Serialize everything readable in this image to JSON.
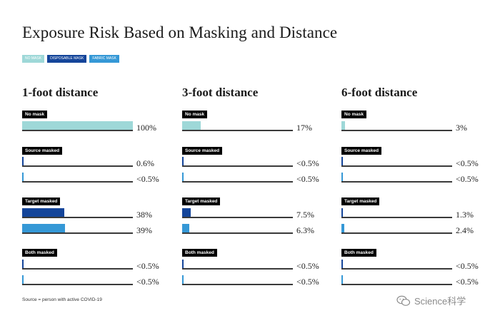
{
  "colors": {
    "no_mask": "#9ed8d8",
    "disposable_mask": "#14459a",
    "fabric_mask": "#3598d6",
    "label_bg": "#000000",
    "baseline": "#3a3a3a"
  },
  "chart_data": {
    "type": "bar",
    "title": "Exposure Risk Based on Masking and Distance",
    "legend": [
      "NO MASK",
      "DISPOSABLE MASK",
      "FABRIC MASK"
    ],
    "unit": "%",
    "panels": [
      {
        "title": "1-foot distance",
        "groups": [
          {
            "label": "No mask",
            "bars": [
              {
                "series": "NO MASK",
                "value": 100,
                "label": "100%"
              }
            ]
          },
          {
            "label": "Source masked",
            "bars": [
              {
                "series": "DISPOSABLE MASK",
                "value": 0.6,
                "label": "0.6%"
              },
              {
                "series": "FABRIC MASK",
                "value": 0.5,
                "label": "<0.5%"
              }
            ]
          },
          {
            "label": "Target masked",
            "bars": [
              {
                "series": "DISPOSABLE MASK",
                "value": 38,
                "label": "38%"
              },
              {
                "series": "FABRIC MASK",
                "value": 39,
                "label": "39%"
              }
            ]
          },
          {
            "label": "Both masked",
            "bars": [
              {
                "series": "DISPOSABLE MASK",
                "value": 0.5,
                "label": "<0.5%"
              },
              {
                "series": "FABRIC MASK",
                "value": 0.5,
                "label": "<0.5%"
              }
            ]
          }
        ]
      },
      {
        "title": "3-foot distance",
        "groups": [
          {
            "label": "No mask",
            "bars": [
              {
                "series": "NO MASK",
                "value": 17,
                "label": "17%"
              }
            ]
          },
          {
            "label": "Source masked",
            "bars": [
              {
                "series": "DISPOSABLE MASK",
                "value": 0.5,
                "label": "<0.5%"
              },
              {
                "series": "FABRIC MASK",
                "value": 0.5,
                "label": "<0.5%"
              }
            ]
          },
          {
            "label": "Target masked",
            "bars": [
              {
                "series": "DISPOSABLE MASK",
                "value": 7.5,
                "label": "7.5%"
              },
              {
                "series": "FABRIC MASK",
                "value": 6.3,
                "label": "6.3%"
              }
            ]
          },
          {
            "label": "Both masked",
            "bars": [
              {
                "series": "DISPOSABLE MASK",
                "value": 0.5,
                "label": "<0.5%"
              },
              {
                "series": "FABRIC MASK",
                "value": 0.5,
                "label": "<0.5%"
              }
            ]
          }
        ]
      },
      {
        "title": "6-foot distance",
        "groups": [
          {
            "label": "No mask",
            "bars": [
              {
                "series": "NO MASK",
                "value": 3,
                "label": "3%"
              }
            ]
          },
          {
            "label": "Source masked",
            "bars": [
              {
                "series": "DISPOSABLE MASK",
                "value": 0.5,
                "label": "<0.5%"
              },
              {
                "series": "FABRIC MASK",
                "value": 0.5,
                "label": "<0.5%"
              }
            ]
          },
          {
            "label": "Target masked",
            "bars": [
              {
                "series": "DISPOSABLE MASK",
                "value": 1.3,
                "label": "1.3%"
              },
              {
                "series": "FABRIC MASK",
                "value": 2.4,
                "label": "2.4%"
              }
            ]
          },
          {
            "label": "Both masked",
            "bars": [
              {
                "series": "DISPOSABLE MASK",
                "value": 0.5,
                "label": "<0.5%"
              },
              {
                "series": "FABRIC MASK",
                "value": 0.5,
                "label": "<0.5%"
              }
            ]
          }
        ]
      }
    ],
    "source_note": "Source = person with active COVID-19"
  },
  "watermark": {
    "text": "Science科学"
  }
}
